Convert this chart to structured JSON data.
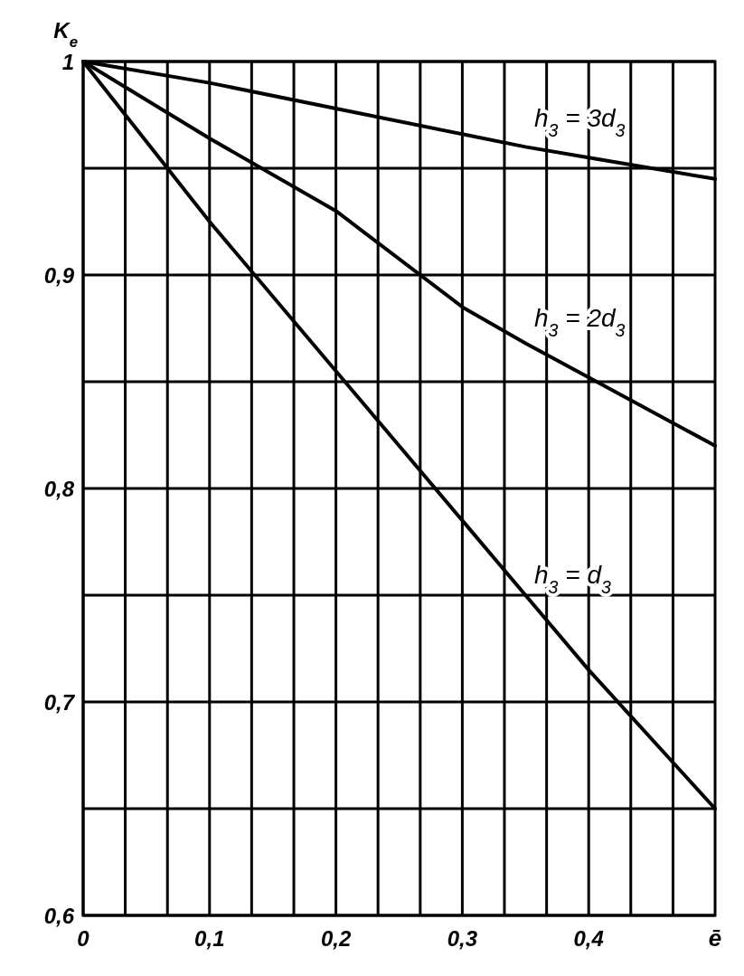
{
  "chart_data": {
    "type": "line",
    "xlabel": "ē",
    "ylabel": "K$_{e}$",
    "xlim": [
      0,
      0.5
    ],
    "ylim": [
      0.6,
      1
    ],
    "xticks": [
      0,
      {
        "value": 0.0333,
        "label": null
      },
      {
        "value": 0.0667,
        "label": null
      },
      {
        "value": 0.1,
        "label": "0,1"
      },
      {
        "value": 0.1333,
        "label": null
      },
      {
        "value": 0.1667,
        "label": null
      },
      {
        "value": 0.2,
        "label": "0,2"
      },
      {
        "value": 0.2333,
        "label": null
      },
      {
        "value": 0.2667,
        "label": null
      },
      {
        "value": 0.3,
        "label": "0,3"
      },
      {
        "value": 0.3333,
        "label": null
      },
      {
        "value": 0.3667,
        "label": null
      },
      {
        "value": 0.4,
        "label": "0,4"
      },
      {
        "value": 0.4333,
        "label": null
      },
      {
        "value": 0.4667,
        "label": null
      }
    ],
    "yticks": [
      {
        "value": 0.6,
        "label": "0,6"
      },
      {
        "value": 0.65,
        "label": null
      },
      {
        "value": 0.7,
        "label": "0,7"
      },
      {
        "value": 0.75,
        "label": null
      },
      {
        "value": 0.8,
        "label": "0,8"
      },
      {
        "value": 0.85,
        "label": null
      },
      {
        "value": 0.9,
        "label": "0,9"
      },
      {
        "value": 0.95,
        "label": null
      },
      1
    ],
    "grid": true,
    "marker": "none",
    "line_style": "solid",
    "x": [
      0,
      0.1,
      0.2,
      0.3,
      0.35,
      0.4,
      0.5
    ],
    "series": [
      {
        "name": "h$_{3}$ = 3d$_{3}$",
        "color": "#000000",
        "values": [
          1,
          0.99,
          0.978,
          0.966,
          0.96,
          0.955,
          0.945
        ]
      },
      {
        "name": "h$_{3}$ = 2d$_{3}$",
        "color": "#000000",
        "values": [
          1,
          0.964,
          0.93,
          0.885,
          0.868,
          0.852,
          0.82
        ]
      },
      {
        "name": "h$_{3}$ = d$_{3}$",
        "color": "#000000",
        "values": [
          1,
          0.925,
          0.855,
          0.785,
          0.75,
          0.715,
          0.65
        ]
      }
    ]
  }
}
